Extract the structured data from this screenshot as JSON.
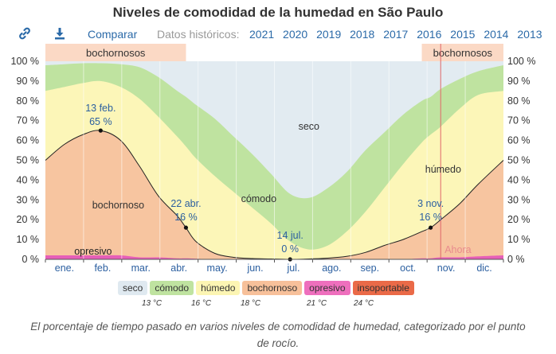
{
  "title": "Niveles de comodidad de la humedad en São Paulo",
  "toolbar": {
    "link_icon": "link-icon",
    "download_icon": "download-icon",
    "compare_label": "Comparar",
    "historic_label": "Datos históricos:",
    "years": [
      "2021",
      "2020",
      "2019",
      "2018",
      "2017",
      "2016",
      "2015",
      "2014",
      "2013"
    ]
  },
  "chart_data": {
    "type": "area",
    "x_months": [
      "ene.",
      "feb.",
      "mar.",
      "abr.",
      "may.",
      "jun.",
      "jul.",
      "ago.",
      "sep.",
      "oct.",
      "nov.",
      "dic."
    ],
    "y_ticks": [
      "0 %",
      "10 %",
      "20 %",
      "30 %",
      "40 %",
      "50 %",
      "60 %",
      "70 %",
      "80 %",
      "90 %",
      "100 %"
    ],
    "ylim": [
      0,
      100
    ],
    "cumulative_percent_by_day": {
      "days": [
        0,
        15,
        30,
        44,
        60,
        75,
        90,
        105,
        112,
        120,
        135,
        150,
        165,
        180,
        195,
        210,
        225,
        240,
        255,
        270,
        285,
        300,
        307,
        315,
        330,
        345,
        365
      ],
      "opresivo": [
        2,
        2,
        2,
        2,
        2,
        1,
        1,
        0.5,
        0.5,
        0.3,
        0,
        0,
        0,
        0,
        0,
        0,
        0,
        0,
        0,
        0,
        0,
        0.5,
        0.5,
        1,
        1,
        1.5,
        2
      ],
      "bochornoso": [
        50,
        58,
        63,
        65,
        60,
        47,
        32,
        22,
        16,
        9,
        3,
        1,
        0.4,
        0.2,
        0,
        0.2,
        0.6,
        1.5,
        3.5,
        7,
        10,
        14,
        16,
        20,
        28,
        38,
        50
      ],
      "humedo": [
        85,
        87,
        89,
        90,
        87,
        81,
        72,
        62,
        57,
        51,
        42,
        34,
        26,
        18,
        9,
        5,
        7,
        14,
        24,
        36,
        48,
        59,
        63,
        67,
        76,
        83,
        85
      ],
      "comodo": [
        98,
        98.5,
        99,
        99,
        98.5,
        97,
        92,
        85,
        82,
        78,
        71,
        62,
        53,
        43,
        33,
        31,
        36,
        44,
        55,
        64,
        73,
        80,
        82,
        86,
        91,
        95,
        98
      ],
      "seco": [
        100,
        100,
        100,
        100,
        100,
        100,
        100,
        100,
        100,
        100,
        100,
        100,
        100,
        100,
        100,
        100,
        100,
        100,
        100,
        100,
        100,
        100,
        100,
        100,
        100,
        100,
        100
      ]
    },
    "region_labels": {
      "seco": "seco",
      "comodo": "cómodo",
      "humedo": "húmedo",
      "bochornoso": "bochornoso",
      "opresivo": "opresivo"
    },
    "season_bands": [
      {
        "label": "bochornosos",
        "start_day": 0,
        "end_day": 112
      },
      {
        "label": "bochornosos",
        "start_day": 300,
        "end_day": 365
      }
    ],
    "annotations": [
      {
        "date": "13 feb.",
        "value": "65 %",
        "day": 44,
        "y": 65
      },
      {
        "date": "22 abr.",
        "value": "16 %",
        "day": 112,
        "y": 16
      },
      {
        "date": "14 jul.",
        "value": "0 %",
        "day": 195,
        "y": 0
      },
      {
        "date": "3 nov.",
        "value": "16 %",
        "day": 307,
        "y": 16
      }
    ],
    "now_label": "Ahora",
    "now_day": 315
  },
  "legend": [
    {
      "label": "seco",
      "color": "#dfe9f0"
    },
    {
      "label": "cómodo",
      "color": "#bfe3a0"
    },
    {
      "label": "húmedo",
      "color": "#fcf5b3"
    },
    {
      "label": "bochornoso",
      "color": "#f7c09a"
    },
    {
      "label": "opresivo",
      "color": "#ee6fbd"
    },
    {
      "label": "insoportable",
      "color": "#ea6a48"
    }
  ],
  "thresholds": [
    "13 °C",
    "16 °C",
    "18 °C",
    "21 °C",
    "24 °C"
  ],
  "colors": {
    "seco": "#e2ebf1",
    "comodo": "#bfe3a0",
    "humedo": "#fcf6b8",
    "bochornoso": "#f7c5a0",
    "opresivo": "#e65fb8",
    "band": "#fbd9c5",
    "accent": "#2b6aa8"
  },
  "caption": "El porcentaje de tiempo pasado en varios niveles de comodidad de humedad, categorizado por el punto de rocío."
}
